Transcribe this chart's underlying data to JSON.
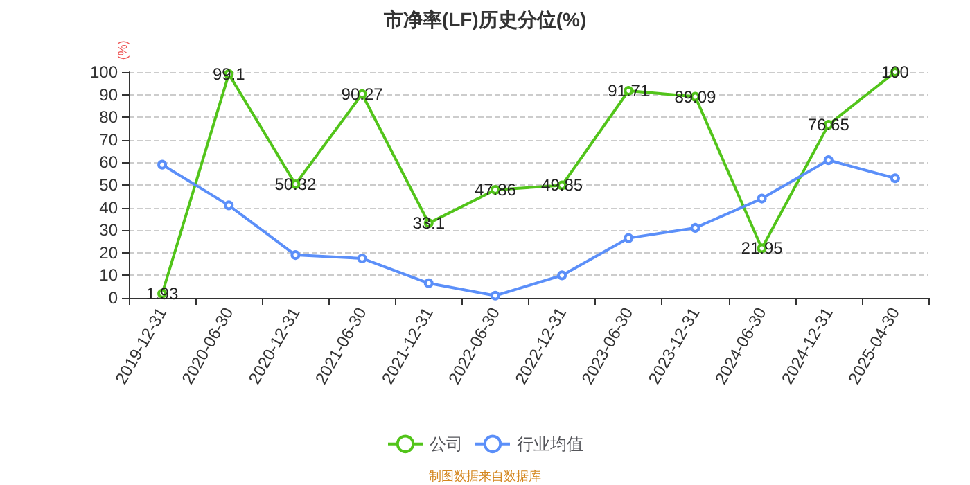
{
  "chart_data": {
    "type": "line",
    "title": "市净率(LF)历史分位(%)",
    "ylabel": "(%)",
    "categories": [
      "2019-12-31",
      "2020-06-30",
      "2020-12-31",
      "2021-06-30",
      "2021-12-31",
      "2022-06-30",
      "2022-12-31",
      "2023-06-30",
      "2023-12-31",
      "2024-06-30",
      "2024-12-31",
      "2025-04-30"
    ],
    "series": [
      {
        "name": "公司",
        "color": "#52c41a",
        "values": [
          1.93,
          99.1,
          50.32,
          90.27,
          33.1,
          47.86,
          49.85,
          91.71,
          89.09,
          21.95,
          76.65,
          100
        ],
        "data_labels": true
      },
      {
        "name": "行业均值",
        "color": "#5b8ff9",
        "values": [
          59,
          41,
          19,
          17.5,
          6.5,
          1,
          10,
          26.5,
          31,
          44,
          61,
          53
        ]
      }
    ],
    "ylim": [
      0,
      100
    ],
    "yticks": [
      0,
      10,
      20,
      30,
      40,
      50,
      60,
      70,
      80,
      90,
      100
    ],
    "grid": "y",
    "legend": "bottom",
    "marker": "circle",
    "annotations": [
      "制图数据来自数据库"
    ]
  }
}
